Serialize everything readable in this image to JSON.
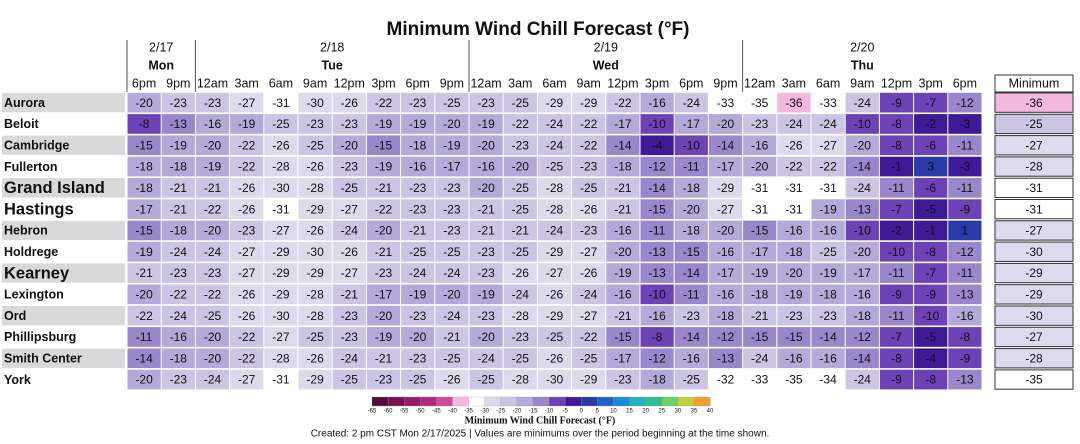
{
  "title": "Minimum Wind Chill Forecast (°F)",
  "days": [
    {
      "date": "2/17",
      "day": "Mon",
      "times": [
        "6pm",
        "9pm"
      ]
    },
    {
      "date": "2/18",
      "day": "Tue",
      "times": [
        "12am",
        "3am",
        "6am",
        "9am",
        "12pm",
        "3pm",
        "6pm",
        "9pm"
      ]
    },
    {
      "date": "2/19",
      "day": "Wed",
      "times": [
        "12am",
        "3am",
        "6am",
        "9am",
        "12pm",
        "3pm",
        "6pm",
        "9pm"
      ]
    },
    {
      "date": "2/20",
      "day": "Thu",
      "times": [
        "12am",
        "3am",
        "6am",
        "9am",
        "12pm",
        "3pm",
        "6pm"
      ]
    }
  ],
  "minimum_header": "Minimum",
  "rows": [
    {
      "location": "Aurora",
      "values": [
        -20,
        -23,
        -23,
        -27,
        -31,
        -30,
        -26,
        -22,
        -23,
        -25,
        -23,
        -25,
        -29,
        -29,
        -22,
        -16,
        -24,
        -33,
        -35,
        -36,
        -33,
        -24,
        -9,
        -7,
        -12
      ],
      "minimum": -36
    },
    {
      "location": "Beloit",
      "values": [
        -8,
        -13,
        -16,
        -19,
        -25,
        -23,
        -23,
        -19,
        -19,
        -20,
        -19,
        -22,
        -24,
        -22,
        -17,
        -10,
        -17,
        -20,
        -23,
        -24,
        -24,
        -10,
        -8,
        -2,
        -3
      ],
      "minimum": -25
    },
    {
      "location": "Cambridge",
      "values": [
        -15,
        -19,
        -20,
        -22,
        -26,
        -25,
        -20,
        -15,
        -18,
        -19,
        -20,
        -23,
        -24,
        -22,
        -14,
        -4,
        -10,
        -14,
        -16,
        -26,
        -27,
        -20,
        -8,
        -6,
        -11
      ],
      "minimum": -27
    },
    {
      "location": "Fullerton",
      "values": [
        -18,
        -18,
        -19,
        -22,
        -28,
        -26,
        -23,
        -19,
        -16,
        -17,
        -16,
        -20,
        -25,
        -23,
        -18,
        -12,
        -11,
        -17,
        -20,
        -22,
        -22,
        -14,
        -1,
        3,
        -3
      ],
      "minimum": -28
    },
    {
      "location": "Grand Island",
      "large": true,
      "values": [
        -18,
        -21,
        -21,
        -26,
        -30,
        -28,
        -25,
        -21,
        -23,
        -23,
        -20,
        -25,
        -28,
        -25,
        -21,
        -14,
        -18,
        -29,
        -31,
        -31,
        -31,
        -24,
        -11,
        -6,
        -11
      ],
      "minimum": -31
    },
    {
      "location": "Hastings",
      "large": true,
      "values": [
        -17,
        -21,
        -22,
        -26,
        -31,
        -29,
        -27,
        -22,
        -23,
        -23,
        -21,
        -25,
        -28,
        -26,
        -21,
        -15,
        -20,
        -27,
        -31,
        -31,
        -19,
        -13,
        -7,
        -5,
        -9
      ],
      "minimum": -31
    },
    {
      "location": "Hebron",
      "values": [
        -15,
        -18,
        -20,
        -23,
        -27,
        -26,
        -24,
        -20,
        -21,
        -23,
        -21,
        -21,
        -24,
        -23,
        -16,
        -11,
        -18,
        -20,
        -15,
        -16,
        -16,
        -10,
        -2,
        -1,
        1
      ],
      "minimum": -27
    },
    {
      "location": "Holdrege",
      "values": [
        -19,
        -24,
        -24,
        -27,
        -29,
        -30,
        -26,
        -21,
        -25,
        -25,
        -23,
        -25,
        -29,
        -27,
        -20,
        -13,
        -15,
        -16,
        -17,
        -18,
        -25,
        -20,
        -10,
        -8,
        -12
      ],
      "minimum": -30
    },
    {
      "location": "Kearney",
      "large": true,
      "values": [
        -21,
        -23,
        -23,
        -27,
        -29,
        -29,
        -27,
        -23,
        -24,
        -24,
        -23,
        -26,
        -27,
        -26,
        -19,
        -13,
        -14,
        -17,
        -19,
        -20,
        -19,
        -17,
        -11,
        -7,
        -11
      ],
      "minimum": -29
    },
    {
      "location": "Lexington",
      "values": [
        -20,
        -22,
        -22,
        -26,
        -29,
        -28,
        -21,
        -17,
        -19,
        -20,
        -19,
        -24,
        -26,
        -24,
        -16,
        -10,
        -11,
        -16,
        -18,
        -19,
        -18,
        -16,
        -9,
        -9,
        -13
      ],
      "minimum": -29
    },
    {
      "location": "Ord",
      "values": [
        -22,
        -24,
        -25,
        -26,
        -30,
        -28,
        -23,
        -20,
        -23,
        -24,
        -23,
        -28,
        -29,
        -27,
        -21,
        -16,
        -23,
        -18,
        -21,
        -23,
        -23,
        -18,
        -11,
        -10,
        -16
      ],
      "minimum": -30
    },
    {
      "location": "Phillipsburg",
      "values": [
        -11,
        -16,
        -20,
        -22,
        -27,
        -25,
        -23,
        -19,
        -20,
        -21,
        -20,
        -23,
        -25,
        -22,
        -15,
        -8,
        -14,
        -12,
        -15,
        -15,
        -14,
        -12,
        -7,
        -5,
        -8
      ],
      "minimum": -27
    },
    {
      "location": "Smith Center",
      "values": [
        -14,
        -18,
        -20,
        -22,
        -28,
        -26,
        -24,
        -21,
        -23,
        -25,
        -24,
        -25,
        -26,
        -25,
        -17,
        -12,
        -16,
        -13,
        -24,
        -16,
        -16,
        -14,
        -8,
        -4,
        -9
      ],
      "minimum": -28
    },
    {
      "location": "York",
      "values": [
        -20,
        -23,
        -24,
        -27,
        -31,
        -29,
        -25,
        -23,
        -25,
        -26,
        -25,
        -28,
        -30,
        -29,
        -23,
        -18,
        -25,
        -32,
        -33,
        -35,
        -34,
        -24,
        -9,
        -8,
        -13
      ],
      "minimum": -35
    }
  ],
  "colorbar": {
    "ticks": [
      -65,
      -60,
      -55,
      -50,
      -45,
      -40,
      -35,
      -30,
      -25,
      -20,
      -15,
      -10,
      -5,
      0,
      5,
      10,
      15,
      20,
      25,
      30,
      35,
      40
    ],
    "colors": [
      "#5a0a3a",
      "#7a1050",
      "#9a1868",
      "#b82580",
      "#d04a9c",
      "#f4b8de",
      "#ffffff",
      "#dedaee",
      "#cbc4e4",
      "#b4aad9",
      "#9888cb",
      "#6c42b6",
      "#3e1a96",
      "#2a3aa8",
      "#1e64c8",
      "#1b8ad8",
      "#20b0c0",
      "#30c090",
      "#70d060",
      "#c0d040",
      "#f0a030"
    ],
    "label": "Minimum Wind Chill Forecast (°F)"
  },
  "footer": "Created: 2 pm CST Mon 2/17/2025  |  Values are minimums over the period beginning at the time shown."
}
